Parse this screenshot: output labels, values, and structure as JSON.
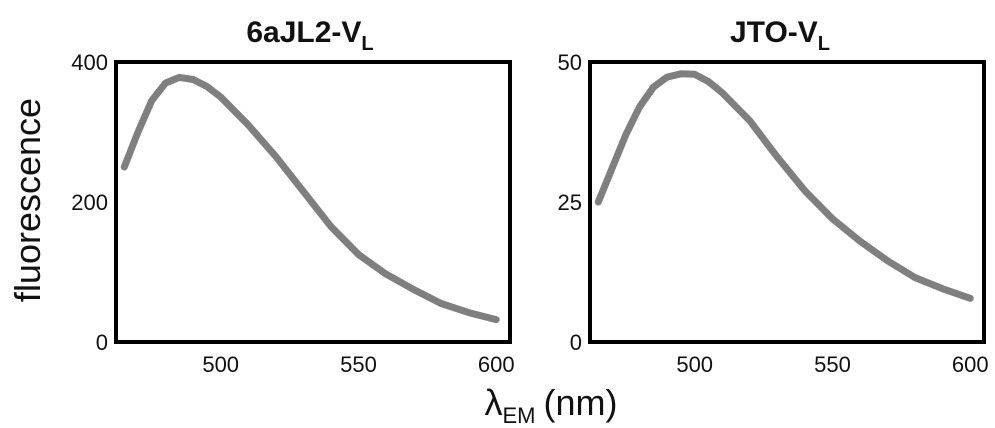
{
  "figure": {
    "ylabel": "fluorescence",
    "xlabel_main": "λ",
    "xlabel_sub": "EM",
    "xlabel_units": "(nm)"
  },
  "chart_data": [
    {
      "type": "line",
      "title_main": "6aJL2-V",
      "title_sub": "L",
      "xlim": [
        462,
        605
      ],
      "ylim": [
        0,
        400
      ],
      "xticks": [
        500,
        550,
        600
      ],
      "yticks": [
        0,
        200,
        400
      ],
      "xtick_labels": [
        "500",
        "550",
        "600"
      ],
      "ytick_labels": [
        "0",
        "200",
        "400"
      ],
      "grid": false,
      "series_color": "#7f7f7f",
      "series": [
        {
          "x": [
            465,
            470,
            475,
            480,
            485,
            490,
            495,
            500,
            510,
            520,
            530,
            540,
            550,
            560,
            570,
            580,
            590,
            600
          ],
          "y": [
            250,
            300,
            345,
            370,
            378,
            375,
            365,
            350,
            310,
            265,
            215,
            165,
            125,
            97,
            75,
            55,
            42,
            32
          ]
        }
      ]
    },
    {
      "type": "line",
      "title_main": "JTO-V",
      "title_sub": "L",
      "xlim": [
        462,
        605
      ],
      "ylim": [
        0,
        50
      ],
      "xticks": [
        500,
        550,
        600
      ],
      "yticks": [
        0,
        25,
        50
      ],
      "xtick_labels": [
        "500",
        "550",
        "600"
      ],
      "ytick_labels": [
        "0",
        "25",
        "50"
      ],
      "grid": false,
      "series_color": "#7f7f7f",
      "series": [
        {
          "x": [
            465,
            470,
            475,
            480,
            485,
            490,
            495,
            500,
            505,
            510,
            520,
            530,
            540,
            550,
            560,
            570,
            580,
            590,
            600
          ],
          "y": [
            25,
            31,
            37,
            42,
            45.5,
            47.3,
            47.9,
            47.8,
            46.5,
            44.5,
            39.5,
            33,
            27,
            22,
            18,
            14.5,
            11.5,
            9.5,
            7.8
          ]
        }
      ]
    }
  ]
}
